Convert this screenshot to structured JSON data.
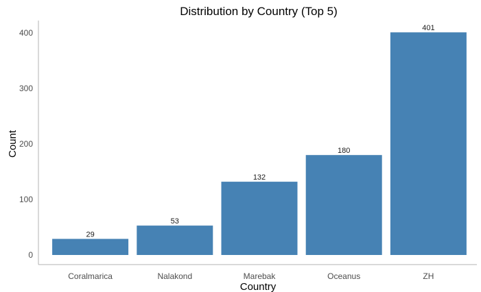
{
  "chart_data": {
    "type": "bar",
    "title": "Distribution by Country (Top 5)",
    "xlabel": "Country",
    "ylabel": "Count",
    "categories": [
      "Coralmarica",
      "Nalakond",
      "Marebak",
      "Oceanus",
      "ZH"
    ],
    "values": [
      29,
      53,
      132,
      180,
      401
    ],
    "data_labels": [
      "29",
      "53",
      "132",
      "180",
      "401"
    ],
    "ylim": [
      0,
      420
    ],
    "yticks": [
      0,
      100,
      200,
      300,
      400
    ],
    "ytick_labels": [
      "0",
      "100",
      "200",
      "300",
      "400"
    ],
    "grid": false,
    "legend": "none",
    "bar_color": "#4682B4"
  }
}
